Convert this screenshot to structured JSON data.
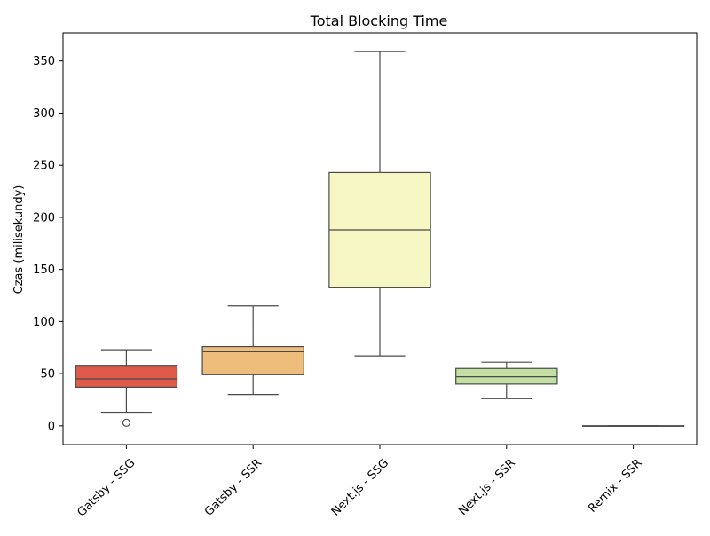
{
  "chart_data": {
    "type": "box",
    "title": "Total Blocking Time",
    "xlabel": "",
    "ylabel": "Czas (milisekundy)",
    "ylim": [
      -18,
      377
    ],
    "yticks": [
      0,
      50,
      100,
      150,
      200,
      250,
      300,
      350
    ],
    "grid": false,
    "categories": [
      "Gatsby - SSG",
      "Gatsby - SSR",
      "Next.js - SSG",
      "Next.js - SSR",
      "Remix - SSR"
    ],
    "colors": [
      "#de5a4a",
      "#eebc7b",
      "#f7f7c5",
      "#c4dfa2",
      "#c4dfa2"
    ],
    "boxes": [
      {
        "category": "Gatsby - SSG",
        "whisker_low": 13,
        "q1": 37,
        "median": 45,
        "q3": 58,
        "whisker_high": 73,
        "outliers": [
          3
        ]
      },
      {
        "category": "Gatsby - SSR",
        "whisker_low": 30,
        "q1": 49,
        "median": 71,
        "q3": 76,
        "whisker_high": 115,
        "outliers": []
      },
      {
        "category": "Next.js - SSG",
        "whisker_low": 67,
        "q1": 133,
        "median": 188,
        "q3": 243,
        "whisker_high": 359,
        "outliers": []
      },
      {
        "category": "Next.js - SSR",
        "whisker_low": 26,
        "q1": 40,
        "median": 47,
        "q3": 55,
        "whisker_high": 61,
        "outliers": []
      },
      {
        "category": "Remix - SSR",
        "whisker_low": 0,
        "q1": 0,
        "median": 0,
        "q3": 0,
        "whisker_high": 0,
        "outliers": []
      }
    ]
  }
}
